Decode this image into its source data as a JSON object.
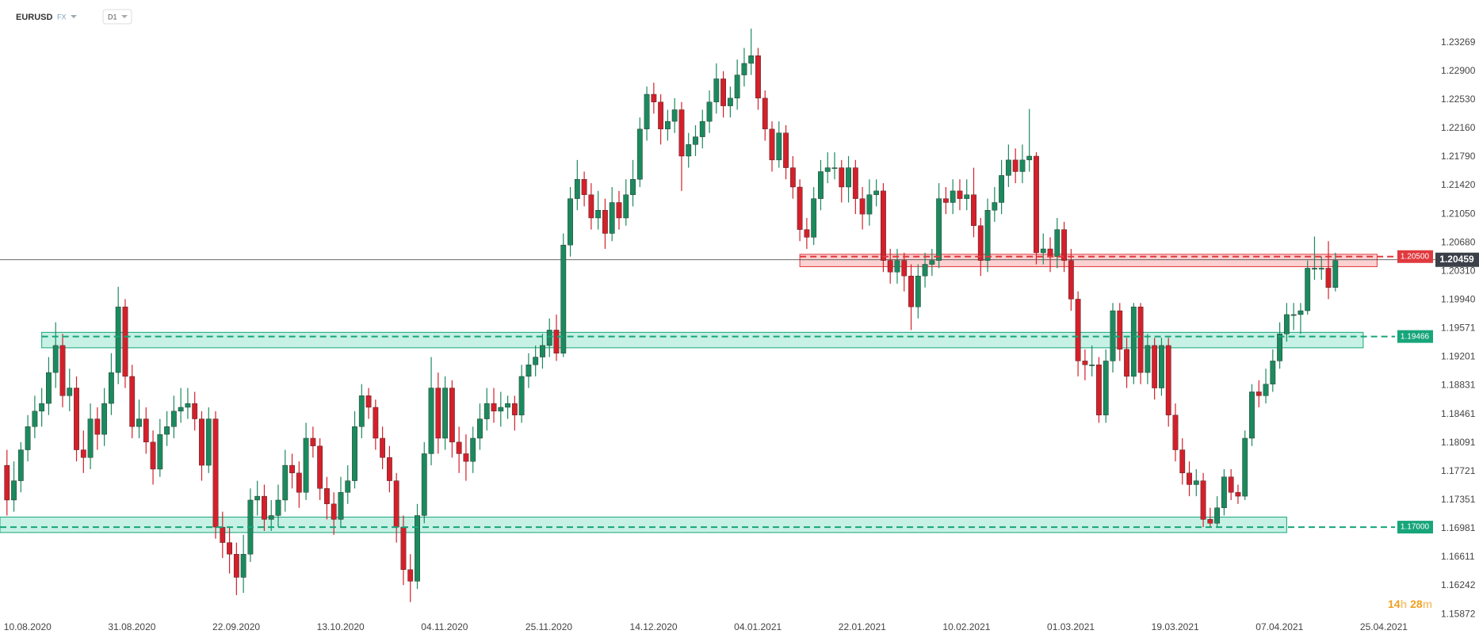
{
  "header": {
    "symbol": "EURUSD",
    "market": "FX",
    "interval": "D1"
  },
  "chart_data": {
    "type": "candlestick",
    "up_color": "#1b8a5e",
    "down_color": "#d4202a",
    "grid": false,
    "xlim": [
      -1,
      199
    ],
    "ylim": [
      1.1575,
      1.2382
    ],
    "xticks": [
      {
        "value": 0,
        "label": "10.08.2020"
      },
      {
        "value": 15,
        "label": "31.08.2020"
      },
      {
        "value": 30,
        "label": "22.09.2020"
      },
      {
        "value": 45,
        "label": "13.10.2020"
      },
      {
        "value": 60,
        "label": "04.11.2020"
      },
      {
        "value": 75,
        "label": "25.11.2020"
      },
      {
        "value": 90,
        "label": "14.12.2020"
      },
      {
        "value": 105,
        "label": "04.01.2021"
      },
      {
        "value": 120,
        "label": "22.01.2021"
      },
      {
        "value": 135,
        "label": "10.02.2021"
      },
      {
        "value": 150,
        "label": "01.03.2021"
      },
      {
        "value": 165,
        "label": "19.03.2021"
      },
      {
        "value": 180,
        "label": "07.04.2021"
      },
      {
        "value": 195,
        "label": "25.04.2021"
      }
    ],
    "yticks": [
      1.23269,
      {
        "value": 1.229,
        "label": "1.22900"
      },
      {
        "value": 1.2253,
        "label": "1.22530"
      },
      {
        "value": 1.2216,
        "label": "1.22160"
      },
      {
        "value": 1.2179,
        "label": "1.21790"
      },
      {
        "value": 1.2142,
        "label": "1.21420"
      },
      {
        "value": 1.2105,
        "label": "1.21050"
      },
      {
        "value": 1.2068,
        "label": "1.20680"
      },
      {
        "value": 1.2031,
        "label": "1.20310"
      },
      {
        "value": 1.1994,
        "label": "1.19940"
      },
      1.19571,
      1.19201,
      1.18831,
      1.18461,
      1.18091,
      1.17721,
      1.17351,
      1.16981,
      1.16611,
      {
        "value": 1.16242,
        "label": "1.16242"
      },
      1.15872
    ],
    "candles": [
      [
        1.178,
        1.18,
        1.1715,
        1.1735
      ],
      [
        1.1735,
        1.1785,
        1.172,
        1.176
      ],
      [
        1.176,
        1.181,
        1.1745,
        1.18
      ],
      [
        1.18,
        1.1845,
        1.1785,
        1.183
      ],
      [
        1.183,
        1.187,
        1.1815,
        1.185
      ],
      [
        1.185,
        1.188,
        1.183,
        1.186
      ],
      [
        1.186,
        1.192,
        1.1845,
        1.19
      ],
      [
        1.19,
        1.1965,
        1.188,
        1.1935
      ],
      [
        1.1935,
        1.195,
        1.1855,
        1.187
      ],
      [
        1.187,
        1.1905,
        1.185,
        1.188
      ],
      [
        1.188,
        1.1895,
        1.1785,
        1.18
      ],
      [
        1.18,
        1.1825,
        1.177,
        1.179
      ],
      [
        1.179,
        1.186,
        1.1775,
        1.184
      ],
      [
        1.184,
        1.1855,
        1.18,
        1.182
      ],
      [
        1.182,
        1.188,
        1.1805,
        1.186
      ],
      [
        1.186,
        1.1925,
        1.1845,
        1.19
      ],
      [
        1.19,
        1.2011,
        1.1885,
        1.1985
      ],
      [
        1.1985,
        1.1995,
        1.188,
        1.1895
      ],
      [
        1.1895,
        1.191,
        1.1815,
        1.183
      ],
      [
        1.183,
        1.1865,
        1.1815,
        1.184
      ],
      [
        1.184,
        1.1855,
        1.1795,
        1.181
      ],
      [
        1.181,
        1.1825,
        1.1755,
        1.1775
      ],
      [
        1.1775,
        1.184,
        1.1765,
        1.182
      ],
      [
        1.182,
        1.185,
        1.1805,
        1.183
      ],
      [
        1.183,
        1.187,
        1.1815,
        1.185
      ],
      [
        1.185,
        1.188,
        1.1835,
        1.1855
      ],
      [
        1.1855,
        1.188,
        1.184,
        1.186
      ],
      [
        1.186,
        1.1875,
        1.1825,
        1.184
      ],
      [
        1.184,
        1.185,
        1.176,
        1.178
      ],
      [
        1.178,
        1.1855,
        1.177,
        1.184
      ],
      [
        1.184,
        1.185,
        1.1685,
        1.17
      ],
      [
        1.17,
        1.172,
        1.166,
        1.168
      ],
      [
        1.168,
        1.17,
        1.164,
        1.1665
      ],
      [
        1.1665,
        1.168,
        1.1612,
        1.1635
      ],
      [
        1.1635,
        1.169,
        1.1615,
        1.1665
      ],
      [
        1.1665,
        1.175,
        1.1655,
        1.1735
      ],
      [
        1.1735,
        1.176,
        1.1715,
        1.174
      ],
      [
        1.174,
        1.1755,
        1.1695,
        1.171
      ],
      [
        1.171,
        1.1735,
        1.1695,
        1.1715
      ],
      [
        1.1715,
        1.1755,
        1.17,
        1.1735
      ],
      [
        1.1735,
        1.18,
        1.172,
        1.178
      ],
      [
        1.178,
        1.1795,
        1.175,
        1.177
      ],
      [
        1.177,
        1.1785,
        1.1725,
        1.1745
      ],
      [
        1.1745,
        1.1835,
        1.1735,
        1.1815
      ],
      [
        1.1815,
        1.183,
        1.179,
        1.1805
      ],
      [
        1.1805,
        1.1815,
        1.1735,
        1.175
      ],
      [
        1.175,
        1.1765,
        1.171,
        1.173
      ],
      [
        1.173,
        1.1745,
        1.169,
        1.171
      ],
      [
        1.171,
        1.1765,
        1.17,
        1.1745
      ],
      [
        1.1745,
        1.178,
        1.173,
        1.176
      ],
      [
        1.176,
        1.185,
        1.175,
        1.183
      ],
      [
        1.183,
        1.1885,
        1.1815,
        1.187
      ],
      [
        1.187,
        1.188,
        1.184,
        1.1855
      ],
      [
        1.1855,
        1.1865,
        1.18,
        1.1815
      ],
      [
        1.1815,
        1.183,
        1.1775,
        1.179
      ],
      [
        1.179,
        1.1805,
        1.1745,
        1.176
      ],
      [
        1.176,
        1.177,
        1.168,
        1.17
      ],
      [
        1.17,
        1.1715,
        1.1625,
        1.1645
      ],
      [
        1.1645,
        1.1665,
        1.1603,
        1.163
      ],
      [
        1.163,
        1.173,
        1.162,
        1.1715
      ],
      [
        1.1715,
        1.181,
        1.1705,
        1.1795
      ],
      [
        1.1795,
        1.192,
        1.178,
        1.188
      ],
      [
        1.188,
        1.19,
        1.1795,
        1.1815
      ],
      [
        1.1815,
        1.1895,
        1.18,
        1.188
      ],
      [
        1.188,
        1.189,
        1.179,
        1.181
      ],
      [
        1.181,
        1.183,
        1.177,
        1.1795
      ],
      [
        1.1795,
        1.182,
        1.176,
        1.1785
      ],
      [
        1.1785,
        1.183,
        1.177,
        1.1815
      ],
      [
        1.1815,
        1.186,
        1.18,
        1.184
      ],
      [
        1.184,
        1.188,
        1.1825,
        1.186
      ],
      [
        1.186,
        1.188,
        1.1835,
        1.185
      ],
      [
        1.185,
        1.1875,
        1.183,
        1.1855
      ],
      [
        1.1855,
        1.187,
        1.184,
        1.186
      ],
      [
        1.186,
        1.187,
        1.1825,
        1.1845
      ],
      [
        1.1845,
        1.191,
        1.1835,
        1.1895
      ],
      [
        1.1895,
        1.1925,
        1.188,
        1.191
      ],
      [
        1.191,
        1.1935,
        1.1895,
        1.192
      ],
      [
        1.192,
        1.195,
        1.1905,
        1.1935
      ],
      [
        1.1935,
        1.197,
        1.192,
        1.1955
      ],
      [
        1.1955,
        1.1975,
        1.1915,
        1.1925
      ],
      [
        1.1925,
        1.208,
        1.192,
        1.2065
      ],
      [
        1.2065,
        1.214,
        1.205,
        1.2125
      ],
      [
        1.2125,
        1.2175,
        1.211,
        1.215
      ],
      [
        1.215,
        1.216,
        1.2115,
        1.213
      ],
      [
        1.213,
        1.2145,
        1.2085,
        1.21
      ],
      [
        1.21,
        1.2135,
        1.2085,
        1.211
      ],
      [
        1.211,
        1.2125,
        1.206,
        1.208
      ],
      [
        1.208,
        1.214,
        1.207,
        1.212
      ],
      [
        1.212,
        1.2135,
        1.2085,
        1.21
      ],
      [
        1.21,
        1.215,
        1.209,
        1.213
      ],
      [
        1.213,
        1.2175,
        1.2115,
        1.215
      ],
      [
        1.215,
        1.223,
        1.214,
        1.2215
      ],
      [
        1.2215,
        1.227,
        1.22,
        1.226
      ],
      [
        1.226,
        1.2275,
        1.2235,
        1.225
      ],
      [
        1.225,
        1.226,
        1.2195,
        1.2215
      ],
      [
        1.2215,
        1.224,
        1.22,
        1.2225
      ],
      [
        1.2225,
        1.2255,
        1.221,
        1.224
      ],
      [
        1.224,
        1.225,
        1.2135,
        1.218
      ],
      [
        1.218,
        1.221,
        1.2165,
        1.2195
      ],
      [
        1.2195,
        1.222,
        1.218,
        1.2205
      ],
      [
        1.2205,
        1.224,
        1.219,
        1.2225
      ],
      [
        1.2225,
        1.2265,
        1.221,
        1.225
      ],
      [
        1.225,
        1.23,
        1.2235,
        1.228
      ],
      [
        1.228,
        1.229,
        1.223,
        1.2245
      ],
      [
        1.2245,
        1.227,
        1.223,
        1.2255
      ],
      [
        1.2255,
        1.2305,
        1.224,
        1.2285
      ],
      [
        1.2285,
        1.232,
        1.227,
        1.23
      ],
      [
        1.23,
        1.2345,
        1.2285,
        1.231
      ],
      [
        1.231,
        1.232,
        1.224,
        1.2255
      ],
      [
        1.2255,
        1.2265,
        1.22,
        1.2215
      ],
      [
        1.2215,
        1.2225,
        1.216,
        1.2175
      ],
      [
        1.2175,
        1.2225,
        1.2165,
        1.221
      ],
      [
        1.221,
        1.222,
        1.215,
        1.2165
      ],
      [
        1.2165,
        1.218,
        1.2125,
        1.214
      ],
      [
        1.214,
        1.215,
        1.207,
        1.2085
      ],
      [
        1.2085,
        1.21,
        1.206,
        1.2075
      ],
      [
        1.2075,
        1.214,
        1.2065,
        1.2125
      ],
      [
        1.2125,
        1.2175,
        1.211,
        1.216
      ],
      [
        1.216,
        1.2185,
        1.2145,
        1.2165
      ],
      [
        1.2165,
        1.2185,
        1.215,
        1.2165
      ],
      [
        1.2165,
        1.2175,
        1.212,
        1.214
      ],
      [
        1.214,
        1.218,
        1.212,
        1.2165
      ],
      [
        1.2165,
        1.2175,
        1.2105,
        1.2125
      ],
      [
        1.2125,
        1.214,
        1.2085,
        1.2105
      ],
      [
        1.2105,
        1.215,
        1.209,
        1.213
      ],
      [
        1.213,
        1.215,
        1.2115,
        1.2135
      ],
      [
        1.2135,
        1.2145,
        1.203,
        1.2045
      ],
      [
        1.2045,
        1.206,
        1.2015,
        1.203
      ],
      [
        1.203,
        1.206,
        1.2015,
        1.2045
      ],
      [
        1.2045,
        1.2055,
        1.2005,
        1.2025
      ],
      [
        1.2025,
        1.204,
        1.1955,
        1.1985
      ],
      [
        1.1985,
        1.204,
        1.197,
        1.2025
      ],
      [
        1.2025,
        1.2055,
        1.201,
        1.204
      ],
      [
        1.204,
        1.206,
        1.2025,
        1.2045
      ],
      [
        1.2045,
        1.2145,
        1.2035,
        1.2125
      ],
      [
        1.2125,
        1.214,
        1.2105,
        1.212
      ],
      [
        1.212,
        1.215,
        1.2105,
        1.2135
      ],
      [
        1.2135,
        1.215,
        1.211,
        1.2125
      ],
      [
        1.2125,
        1.215,
        1.211,
        1.213
      ],
      [
        1.213,
        1.2165,
        1.2075,
        1.209
      ],
      [
        1.209,
        1.21,
        1.2025,
        1.2045
      ],
      [
        1.2045,
        1.2125,
        1.203,
        1.211
      ],
      [
        1.211,
        1.214,
        1.2095,
        1.212
      ],
      [
        1.212,
        1.2175,
        1.2105,
        1.2155
      ],
      [
        1.2155,
        1.2195,
        1.214,
        1.2175
      ],
      [
        1.2175,
        1.219,
        1.2145,
        1.216
      ],
      [
        1.216,
        1.2195,
        1.2145,
        1.2175
      ],
      [
        1.2175,
        1.2241,
        1.216,
        1.218
      ],
      [
        1.218,
        1.2185,
        1.204,
        1.2055
      ],
      [
        1.2055,
        1.208,
        1.204,
        1.206
      ],
      [
        1.206,
        1.2075,
        1.203,
        1.205
      ],
      [
        1.205,
        1.21,
        1.2035,
        1.2085
      ],
      [
        1.2085,
        1.2095,
        1.203,
        1.2045
      ],
      [
        1.2045,
        1.206,
        1.198,
        1.1995
      ],
      [
        1.1995,
        1.2005,
        1.1895,
        1.1915
      ],
      [
        1.1915,
        1.193,
        1.189,
        1.191
      ],
      [
        1.191,
        1.1935,
        1.1895,
        1.191
      ],
      [
        1.191,
        1.192,
        1.1835,
        1.1845
      ],
      [
        1.1845,
        1.193,
        1.1835,
        1.1915
      ],
      [
        1.1915,
        1.199,
        1.19,
        1.198
      ],
      [
        1.198,
        1.199,
        1.1915,
        1.193
      ],
      [
        1.193,
        1.1945,
        1.188,
        1.1895
      ],
      [
        1.1895,
        1.199,
        1.1885,
        1.1985
      ],
      [
        1.1985,
        1.199,
        1.1885,
        1.19
      ],
      [
        1.19,
        1.195,
        1.1885,
        1.1935
      ],
      [
        1.1935,
        1.1945,
        1.1865,
        1.188
      ],
      [
        1.188,
        1.1945,
        1.187,
        1.1935
      ],
      [
        1.1935,
        1.1945,
        1.183,
        1.1845
      ],
      [
        1.1845,
        1.186,
        1.1785,
        1.18
      ],
      [
        1.18,
        1.1815,
        1.1755,
        1.177
      ],
      [
        1.177,
        1.1785,
        1.174,
        1.1755
      ],
      [
        1.1755,
        1.1775,
        1.174,
        1.176
      ],
      [
        1.176,
        1.177,
        1.17,
        1.171
      ],
      [
        1.171,
        1.1725,
        1.17,
        1.1705
      ],
      [
        1.1705,
        1.174,
        1.17,
        1.1725
      ],
      [
        1.1725,
        1.1775,
        1.1715,
        1.1765
      ],
      [
        1.1765,
        1.1775,
        1.1735,
        1.1745
      ],
      [
        1.1745,
        1.1755,
        1.173,
        1.174
      ],
      [
        1.174,
        1.1825,
        1.1735,
        1.1815
      ],
      [
        1.1815,
        1.1885,
        1.1805,
        1.1875
      ],
      [
        1.1875,
        1.189,
        1.1855,
        1.187
      ],
      [
        1.187,
        1.1905,
        1.186,
        1.1885
      ],
      [
        1.1885,
        1.193,
        1.1875,
        1.1915
      ],
      [
        1.1915,
        1.1965,
        1.1905,
        1.195
      ],
      [
        1.195,
        1.199,
        1.194,
        1.1975
      ],
      [
        1.1975,
        1.199,
        1.1955,
        1.1975
      ],
      [
        1.1975,
        1.199,
        1.195,
        1.198
      ],
      [
        1.198,
        1.2045,
        1.1975,
        1.2035
      ],
      [
        1.2035,
        1.2076,
        1.202,
        1.2035
      ],
      [
        1.2035,
        1.205,
        1.202,
        1.2035
      ],
      [
        1.2035,
        1.207,
        1.1995,
        1.201
      ],
      [
        1.201,
        1.2055,
        1.2005,
        1.2045
      ]
    ],
    "levels": [
      {
        "value": 1.205,
        "label": "1.20500",
        "color": "#e0393e",
        "zone_low": 1.2037,
        "zone_high": 1.2053,
        "start": 114,
        "end": 197
      },
      {
        "value": 1.19466,
        "label": "1.19466",
        "color": "#17a57a",
        "zone_low": 1.1932,
        "zone_high": 1.1952,
        "start": 5,
        "end": 195
      },
      {
        "value": 1.17,
        "label": "1.17000",
        "color": "#17a57a",
        "zone_low": 1.1693,
        "zone_high": 1.1713,
        "start": -1,
        "end": 184
      }
    ],
    "last_price": 1.20459,
    "countdown": {
      "hours": 14,
      "hours_unit": "h",
      "minutes": 28,
      "minutes_unit": "m"
    }
  }
}
